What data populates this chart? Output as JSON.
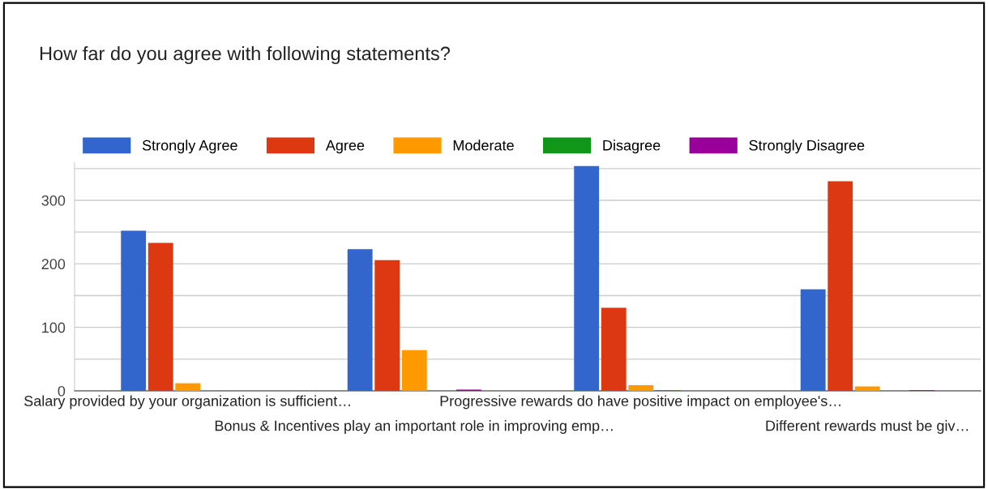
{
  "chart_data": {
    "type": "bar",
    "title": "How far do you agree with following statements?",
    "categories": [
      "Salary provided by your organization is sufficient…",
      "Bonus & Incentives play an important role in improving emp…",
      "Progressive rewards do have positive impact on employee's…",
      "Different rewards must be giv…"
    ],
    "series": [
      {
        "name": "Strongly Agree",
        "color": "#3366cc",
        "values": [
          252,
          223,
          354,
          160
        ]
      },
      {
        "name": "Agree",
        "color": "#dc3912",
        "values": [
          233,
          206,
          131,
          330
        ]
      },
      {
        "name": "Moderate",
        "color": "#ff9900",
        "values": [
          12,
          64,
          9,
          7
        ]
      },
      {
        "name": "Disagree",
        "color": "#109618",
        "values": [
          0,
          0,
          1,
          0
        ]
      },
      {
        "name": "Strongly Disagree",
        "color": "#990099",
        "values": [
          0,
          2,
          0,
          1
        ]
      }
    ],
    "ylim": [
      0,
      360
    ],
    "yticks": [
      0,
      {
        "value": 50,
        "label": null
      },
      100,
      {
        "value": 150,
        "label": null
      },
      200,
      {
        "value": 250,
        "label": null
      },
      300,
      {
        "value": 350,
        "label": null
      }
    ],
    "grid": "y",
    "legend": "top"
  }
}
